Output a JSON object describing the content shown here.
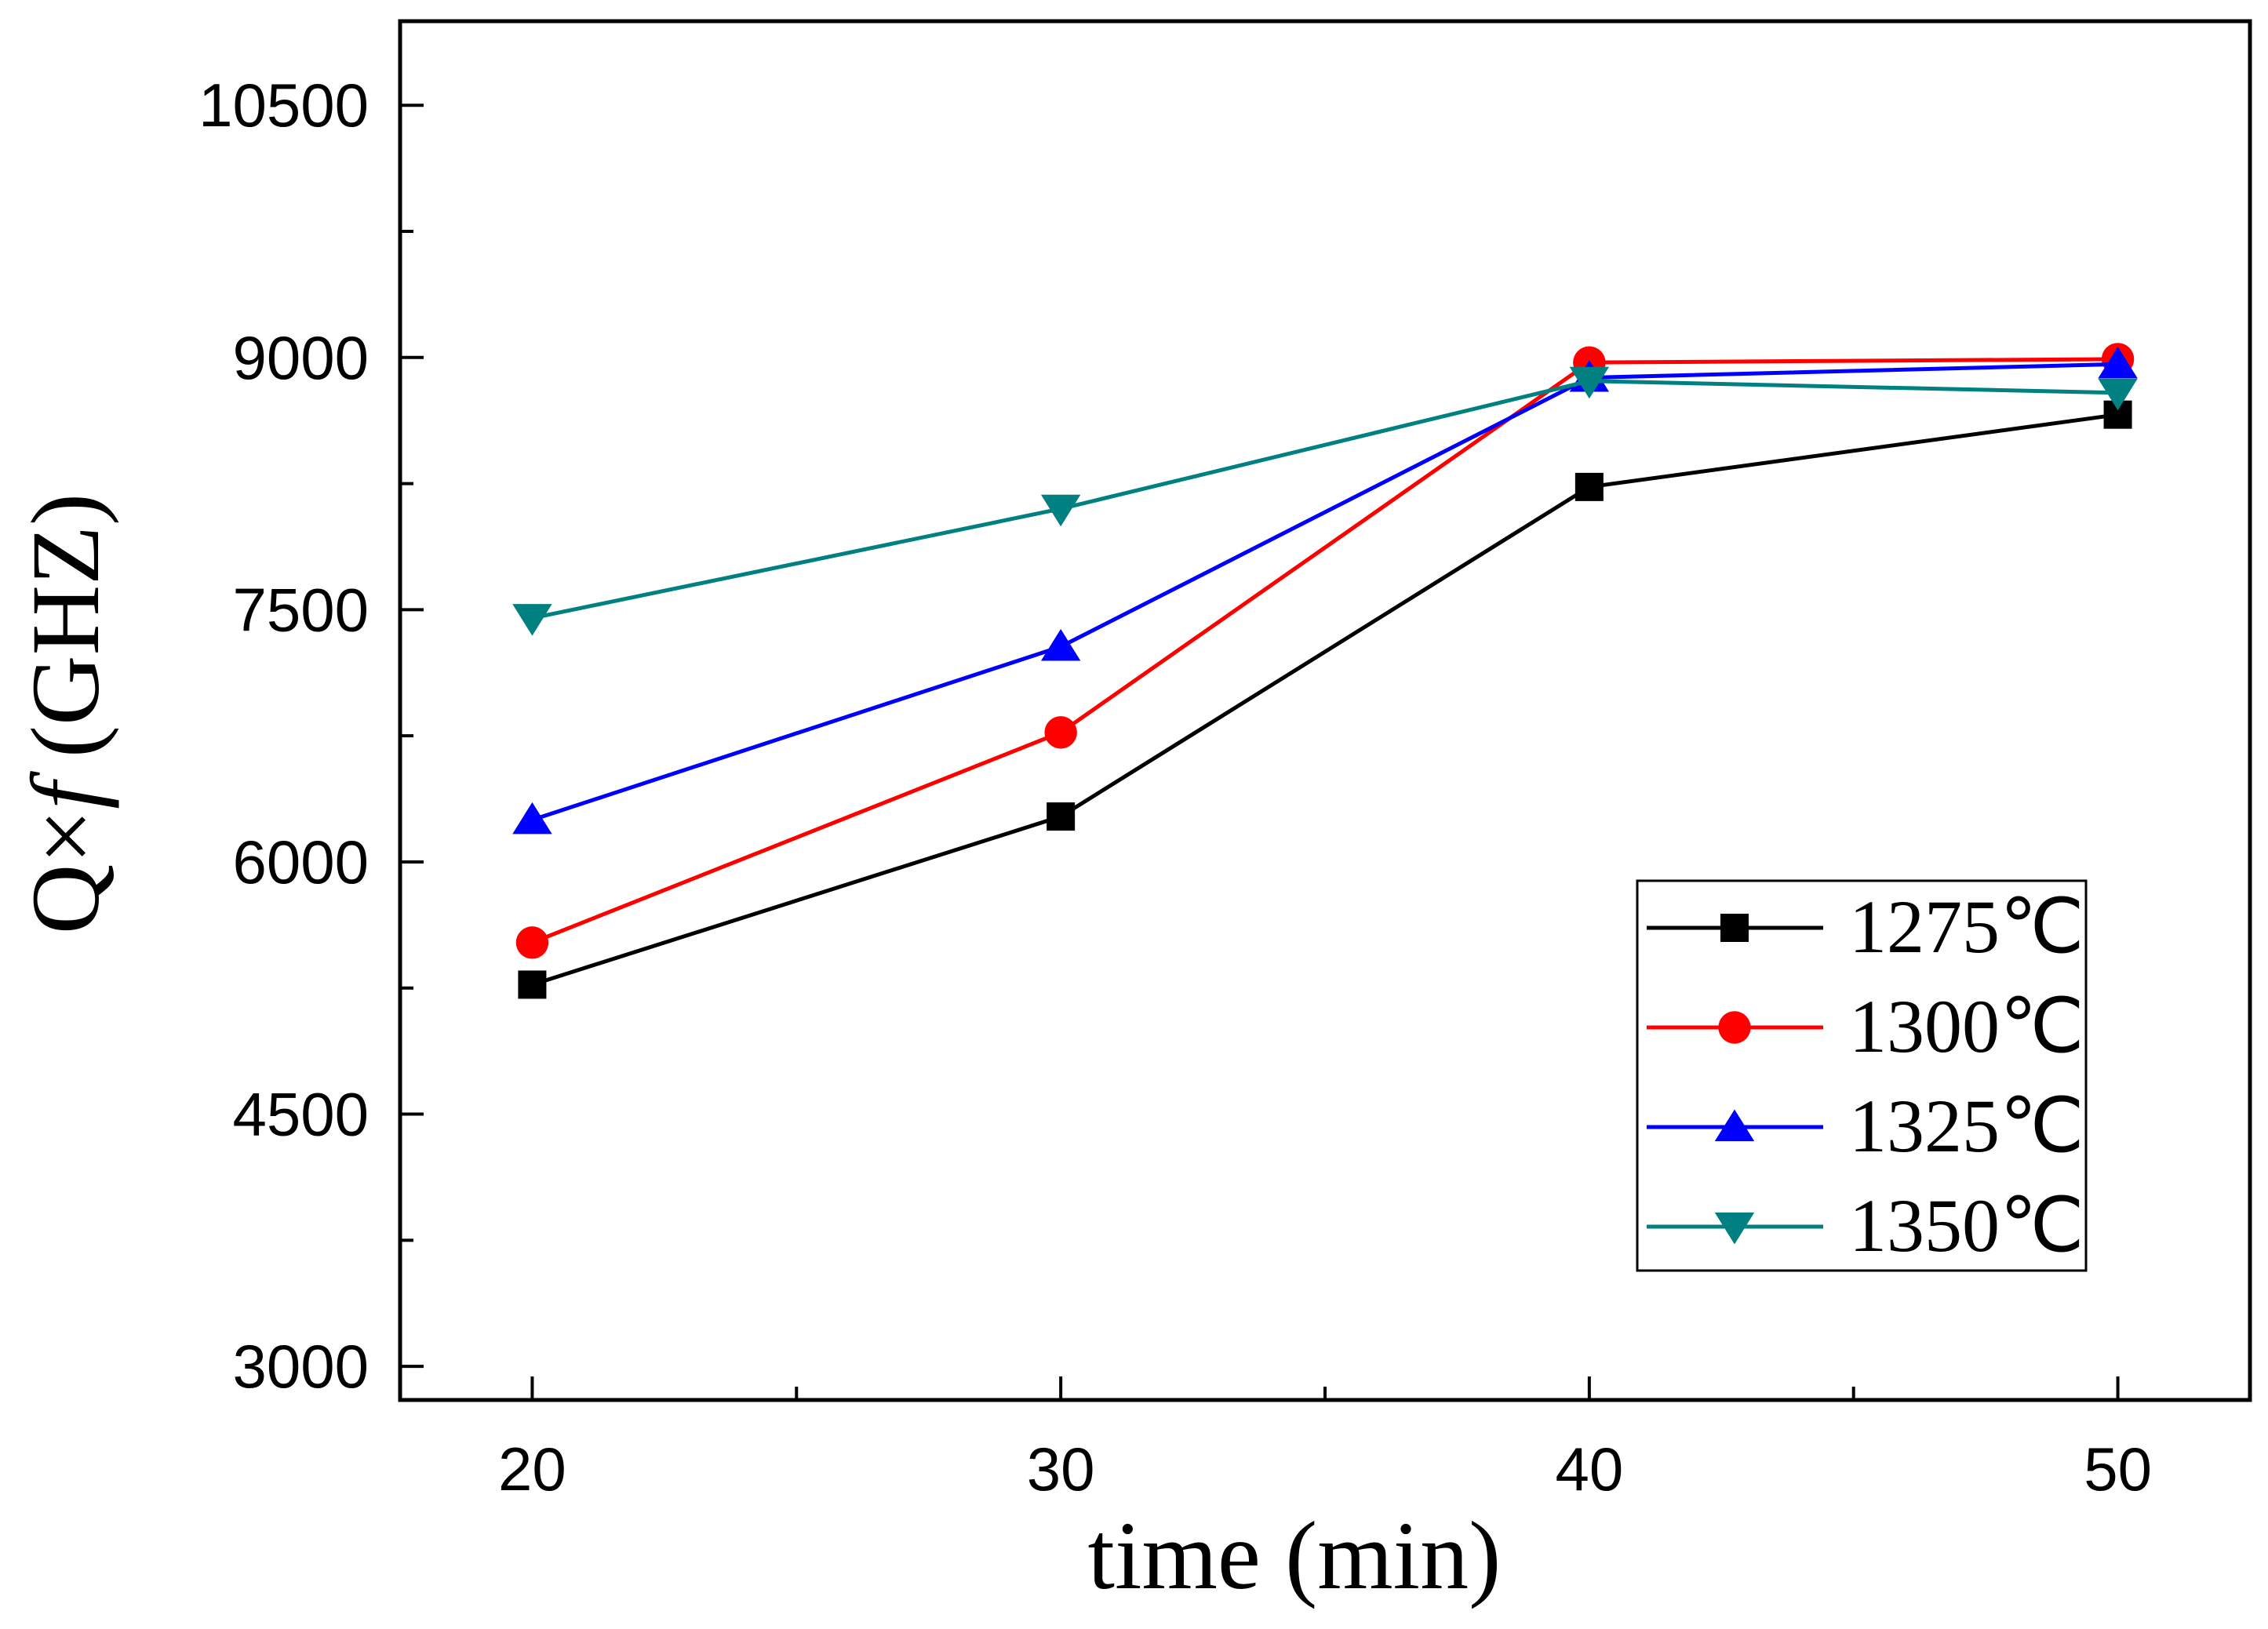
{
  "chart_data": {
    "type": "line",
    "title": "",
    "xlabel": "time (min)",
    "ylabel_prefix": "Q×",
    "ylabel_var": "f",
    "ylabel_suffix": " (GHZ)",
    "x": [
      20,
      30,
      40,
      50
    ],
    "xlim": [
      17.5,
      52.5
    ],
    "ylim": [
      2800,
      11000
    ],
    "xticks": [
      20,
      30,
      40,
      50
    ],
    "xminor": [
      25,
      35,
      45
    ],
    "yticks": [
      3000,
      4500,
      6000,
      7500,
      9000,
      10500
    ],
    "yminor": [
      3750,
      5250,
      6750,
      8250,
      9750
    ],
    "legend_position": "center-right",
    "grid": false,
    "series": [
      {
        "name": "1275℃",
        "values": [
          5270,
          6270,
          8230,
          8660
        ],
        "color": "#000000",
        "marker": "square"
      },
      {
        "name": "1300℃",
        "values": [
          5520,
          6770,
          8970,
          8990
        ],
        "color": "#ff0000",
        "marker": "circle"
      },
      {
        "name": "1325℃",
        "values": [
          6250,
          7280,
          8880,
          8960
        ],
        "color": "#0000ff",
        "marker": "triangle-up"
      },
      {
        "name": "1350℃",
        "values": [
          7450,
          8100,
          8860,
          8790
        ],
        "color": "#008080",
        "marker": "triangle-down"
      }
    ]
  }
}
